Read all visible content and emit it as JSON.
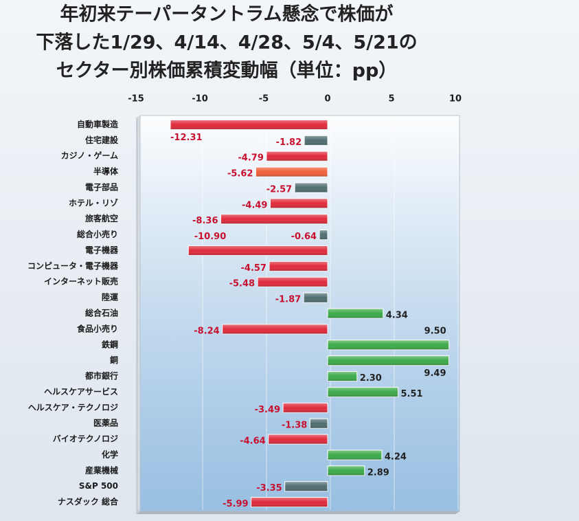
{
  "chart_data": {
    "type": "bar",
    "orientation": "horizontal",
    "title": [
      "年初来テーパータントラム懸念で株価が",
      "下落した1/29、4/14、4/28、5/4、5/21の",
      "セクター別株価累積変動幅（単位：pp）"
    ],
    "categories": [
      "自動車製造",
      "住宅建設",
      "カジノ・ゲーム",
      "半導体",
      "電子部品",
      "ホテル・リゾ",
      "旅客航空",
      "総合小売り",
      "電子機器",
      "コンピュータ・電子機器",
      "インターネット販売",
      "陸運",
      "総合石油",
      "食品小売り",
      "鉄鋼",
      "銅",
      "都市銀行",
      "ヘルスケアサービス",
      "ヘルスケア・テクノロジ",
      "医薬品",
      "バイオテクノロジ",
      "化学",
      "産業機械",
      "S&P 500",
      "ナスダック 総合"
    ],
    "values": [
      -12.31,
      -1.82,
      -4.79,
      -5.62,
      -2.57,
      -4.49,
      -8.36,
      -0.64,
      -10.9,
      -4.57,
      -5.48,
      -1.87,
      4.34,
      -8.24,
      9.5,
      9.49,
      2.3,
      5.51,
      -3.49,
      -1.38,
      -4.64,
      4.24,
      2.89,
      -3.35,
      -5.99
    ],
    "value_labels": [
      "-12.31",
      "-1.82",
      "-4.79",
      "-5.62",
      "-2.57",
      "-4.49",
      "-8.36",
      "-0.64",
      "-10.90",
      "-4.57",
      "-5.48",
      "-1.87",
      "4.34",
      "-8.24",
      "9.50",
      "9.49",
      "2.30",
      "5.51",
      "-3.49",
      "-1.38",
      "-4.64",
      "4.24",
      "2.89",
      "-3.35",
      "-5.99"
    ],
    "colors": [
      "#e02b3c",
      "#4f6e70",
      "#e02b3c",
      "#f0603a",
      "#4f6e70",
      "#e02b3c",
      "#e02b3c",
      "#4f6e70",
      "#e02b3c",
      "#e02b3c",
      "#e02b3c",
      "#4f6e70",
      "#3daa4a",
      "#e02b3c",
      "#3daa4a",
      "#3daa4a",
      "#3daa4a",
      "#3daa4a",
      "#e02b3c",
      "#4f6e70",
      "#e02b3c",
      "#3daa4a",
      "#3daa4a",
      "#4f6e70",
      "#e02b3c"
    ],
    "xlim": [
      -15,
      10
    ],
    "xticks": [
      -15,
      -10,
      -5,
      0,
      5,
      10
    ]
  }
}
